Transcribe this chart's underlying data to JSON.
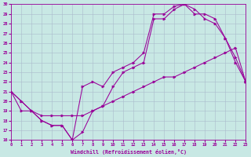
{
  "xlabel": "Windchill (Refroidissement éolien,°C)",
  "line_color": "#990099",
  "bg_color": "#c8e8e4",
  "grid_color": "#aabbcc",
  "xmin": 0,
  "xmax": 23,
  "ymin": 16,
  "ymax": 30,
  "line1_x": [
    0,
    1,
    2,
    3,
    4,
    5,
    6,
    7,
    8,
    9,
    10,
    11,
    12,
    13,
    14,
    15,
    16,
    17,
    18,
    19,
    20,
    21,
    22,
    23
  ],
  "line1_y": [
    21.0,
    20.0,
    19.0,
    18.0,
    17.5,
    17.5,
    16.0,
    16.8,
    19.0,
    19.5,
    21.5,
    23.0,
    23.5,
    24.0,
    28.5,
    28.5,
    29.5,
    30.0,
    29.5,
    28.5,
    28.0,
    26.5,
    24.0,
    22.0
  ],
  "line2_x": [
    0,
    1,
    2,
    3,
    4,
    5,
    6,
    7,
    8,
    9,
    10,
    11,
    12,
    13,
    14,
    15,
    16,
    17,
    18,
    19,
    20,
    21,
    22,
    23
  ],
  "line2_y": [
    21.0,
    20.0,
    19.0,
    18.0,
    17.5,
    17.5,
    16.0,
    21.5,
    22.0,
    21.5,
    23.0,
    23.5,
    24.0,
    25.0,
    29.0,
    29.0,
    29.8,
    30.0,
    29.0,
    29.0,
    28.5,
    26.5,
    24.5,
    22.0
  ],
  "line3_x": [
    0,
    1,
    2,
    3,
    4,
    5,
    6,
    7,
    8,
    9,
    10,
    11,
    12,
    13,
    14,
    15,
    16,
    17,
    18,
    19,
    20,
    21,
    22,
    23
  ],
  "line3_y": [
    21.0,
    19.0,
    19.0,
    18.5,
    18.5,
    18.5,
    18.5,
    18.5,
    19.0,
    19.5,
    20.0,
    20.5,
    21.0,
    21.5,
    22.0,
    22.5,
    22.5,
    23.0,
    23.5,
    24.0,
    24.5,
    25.0,
    25.5,
    22.0
  ]
}
